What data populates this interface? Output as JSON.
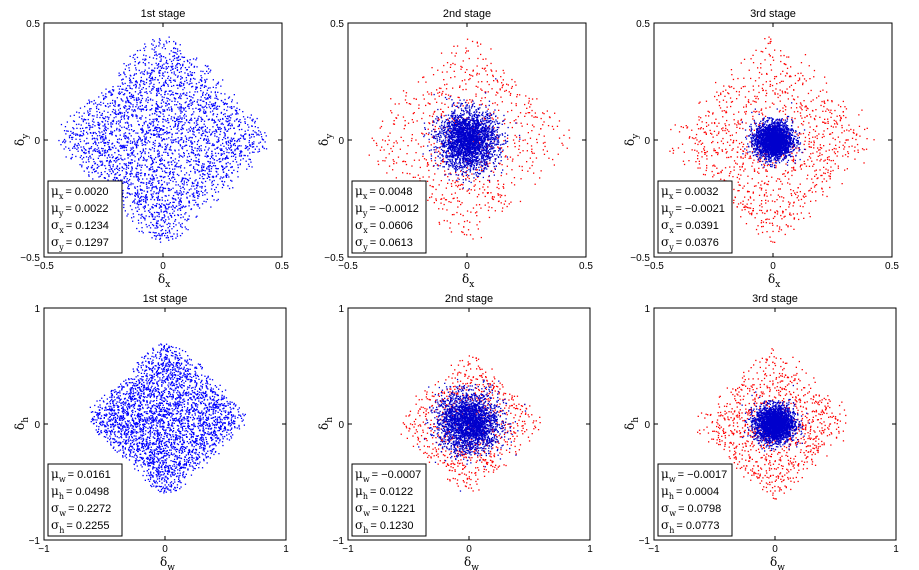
{
  "colors": {
    "first_stage": "#0000ff",
    "refined": "#0000cc",
    "outliers": "#ff0000",
    "axes": "#000000"
  },
  "chart_data": [
    {
      "type": "scatter",
      "title": "1st stage",
      "xlabel": {
        "sym": "δ",
        "sub": "x"
      },
      "ylabel": {
        "sym": "δ",
        "sub": "y"
      },
      "xlim": [
        -0.5,
        0.5
      ],
      "ylim": [
        -0.5,
        0.5
      ],
      "xticks": [
        "−0.5",
        "0",
        "0.5"
      ],
      "yticks": [
        "−0.5",
        "0",
        "0.5"
      ],
      "series": [
        {
          "color": "#0000ff",
          "count": 3200,
          "mean_x": 0.002,
          "mean_y": 0.0022,
          "sd_x": 0.1234,
          "sd_y": 0.1297,
          "shape": "diamond",
          "extent": 0.44
        }
      ],
      "stats": [
        {
          "sym": "μ",
          "sub": "x",
          "value": "= 0.0020"
        },
        {
          "sym": "μ",
          "sub": "y",
          "value": "= 0.0022"
        },
        {
          "sym": "σ",
          "sub": "x",
          "value": "= 0.1234"
        },
        {
          "sym": "σ",
          "sub": "y",
          "value": "= 0.1297"
        }
      ]
    },
    {
      "type": "scatter",
      "title": "2nd stage",
      "xlabel": {
        "sym": "δ",
        "sub": "x"
      },
      "ylabel": {
        "sym": "δ",
        "sub": "y"
      },
      "xlim": [
        -0.5,
        0.5
      ],
      "ylim": [
        -0.5,
        0.5
      ],
      "xticks": [
        "−0.5",
        "0",
        "0.5"
      ],
      "yticks": [
        "−0.5",
        "0",
        "0.5"
      ],
      "series": [
        {
          "color": "#ff0000",
          "count": 800,
          "shape": "diamond",
          "extent": 0.44
        },
        {
          "color": "#0000cc",
          "count": 2600,
          "mean_x": 0.0048,
          "mean_y": -0.0012,
          "sd_x": 0.0606,
          "sd_y": 0.0613,
          "shape": "gauss"
        }
      ],
      "stats": [
        {
          "sym": "μ",
          "sub": "x",
          "value": "= 0.0048"
        },
        {
          "sym": "μ",
          "sub": "y",
          "value": "= −0.0012"
        },
        {
          "sym": "σ",
          "sub": "x",
          "value": "= 0.0606"
        },
        {
          "sym": "σ",
          "sub": "y",
          "value": "= 0.0613"
        }
      ]
    },
    {
      "type": "scatter",
      "title": "3rd stage",
      "xlabel": {
        "sym": "δ",
        "sub": "x"
      },
      "ylabel": {
        "sym": "δ",
        "sub": "y"
      },
      "xlim": [
        -0.5,
        0.5
      ],
      "ylim": [
        -0.5,
        0.5
      ],
      "xticks": [
        "−0.5",
        "0",
        "0.5"
      ],
      "yticks": [
        "−0.5",
        "0",
        "0.5"
      ],
      "series": [
        {
          "color": "#ff0000",
          "count": 1100,
          "shape": "diamond",
          "extent": 0.44
        },
        {
          "color": "#0000cc",
          "count": 2600,
          "mean_x": 0.0032,
          "mean_y": -0.0021,
          "sd_x": 0.0391,
          "sd_y": 0.0376,
          "shape": "gauss"
        }
      ],
      "stats": [
        {
          "sym": "μ",
          "sub": "x",
          "value": "= 0.0032"
        },
        {
          "sym": "μ",
          "sub": "y",
          "value": "= −0.0021"
        },
        {
          "sym": "σ",
          "sub": "x",
          "value": "= 0.0391"
        },
        {
          "sym": "σ",
          "sub": "y",
          "value": "= 0.0376"
        }
      ]
    },
    {
      "type": "scatter",
      "title": "1st stage",
      "xlabel": {
        "sym": "δ",
        "sub": "w"
      },
      "ylabel": {
        "sym": "δ",
        "sub": "h"
      },
      "xlim": [
        -1,
        1
      ],
      "ylim": [
        -1,
        1
      ],
      "xticks": [
        "−1",
        "0",
        "1"
      ],
      "yticks": [
        "−1",
        "0",
        "1"
      ],
      "series": [
        {
          "color": "#0000ff",
          "count": 3200,
          "mean_x": 0.0161,
          "mean_y": 0.0498,
          "sd_x": 0.2272,
          "sd_y": 0.2255,
          "shape": "diamond",
          "extent": 0.65
        }
      ],
      "stats": [
        {
          "sym": "μ",
          "sub": "w",
          "value": "= 0.0161"
        },
        {
          "sym": "μ",
          "sub": "h",
          "value": "= 0.0498"
        },
        {
          "sym": "σ",
          "sub": "w",
          "value": "= 0.2272"
        },
        {
          "sym": "σ",
          "sub": "h",
          "value": "= 0.2255"
        }
      ]
    },
    {
      "type": "scatter",
      "title": "2nd stage",
      "xlabel": {
        "sym": "δ",
        "sub": "w"
      },
      "ylabel": {
        "sym": "δ",
        "sub": "h"
      },
      "xlim": [
        -1,
        1
      ],
      "ylim": [
        -1,
        1
      ],
      "xticks": [
        "−1",
        "0",
        "1"
      ],
      "yticks": [
        "−1",
        "0",
        "1"
      ],
      "series": [
        {
          "color": "#ff0000",
          "count": 800,
          "shape": "diamond",
          "extent": 0.6
        },
        {
          "color": "#0000cc",
          "count": 2600,
          "mean_x": -0.0007,
          "mean_y": 0.0122,
          "sd_x": 0.1221,
          "sd_y": 0.123,
          "shape": "gauss"
        }
      ],
      "stats": [
        {
          "sym": "μ",
          "sub": "w",
          "value": "= −0.0007"
        },
        {
          "sym": "μ",
          "sub": "h",
          "value": "= 0.0122"
        },
        {
          "sym": "σ",
          "sub": "w",
          "value": "= 0.1221"
        },
        {
          "sym": "σ",
          "sub": "h",
          "value": "= 0.1230"
        }
      ]
    },
    {
      "type": "scatter",
      "title": "3rd stage",
      "xlabel": {
        "sym": "δ",
        "sub": "w"
      },
      "ylabel": {
        "sym": "δ",
        "sub": "h"
      },
      "xlim": [
        -1,
        1
      ],
      "ylim": [
        -1,
        1
      ],
      "xticks": [
        "−1",
        "0",
        "1"
      ],
      "yticks": [
        "−1",
        "0",
        "1"
      ],
      "series": [
        {
          "color": "#ff0000",
          "count": 1000,
          "shape": "diamond",
          "extent": 0.65
        },
        {
          "color": "#0000cc",
          "count": 2600,
          "mean_x": -0.0017,
          "mean_y": 0.0004,
          "sd_x": 0.0798,
          "sd_y": 0.0773,
          "shape": "gauss"
        }
      ],
      "stats": [
        {
          "sym": "μ",
          "sub": "w",
          "value": "= −0.0017"
        },
        {
          "sym": "μ",
          "sub": "h",
          "value": "= 0.0004"
        },
        {
          "sym": "σ",
          "sub": "w",
          "value": "= 0.0798"
        },
        {
          "sym": "σ",
          "sub": "h",
          "value": "= 0.0773"
        }
      ]
    }
  ]
}
